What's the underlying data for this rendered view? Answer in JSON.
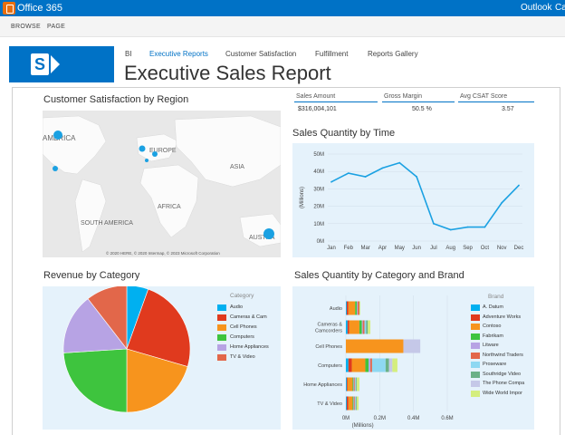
{
  "suite": {
    "title": "Office 365",
    "links": [
      "Outlook",
      "Ca"
    ]
  },
  "ribbon": {
    "tabs": [
      "BROWSE",
      "PAGE"
    ]
  },
  "nav": {
    "items": [
      "BI",
      "Executive Reports",
      "Customer Satisfaction",
      "Fulfillment",
      "Reports Gallery"
    ]
  },
  "page": {
    "title": "Executive Sales Report"
  },
  "cards": [
    {
      "label": "Sales Amount",
      "value": "$316,004,101"
    },
    {
      "label": "Gross Margin",
      "value": "50.5 %"
    },
    {
      "label": "Avg CSAT Score",
      "value": "3.57"
    }
  ],
  "map": {
    "title": "Customer Satisfaction by Region",
    "labels": [
      "AMERICA",
      "EUROPE",
      "ASIA",
      "AFRICA",
      "SOUTH AMERICA",
      "AUSTRA"
    ],
    "credit": "© 2020 HERE, © 2020 Intermap, © 2023 Microsoft Corporation"
  },
  "colors": {
    "accent": "#0072c6",
    "panel": "#e5f2fb",
    "line": "#1ba1e2"
  },
  "chart_data": [
    {
      "type": "line",
      "title": "Sales Quantity by Time",
      "ylabel": "(Millions)",
      "x": [
        "Jan",
        "Feb",
        "Mar",
        "Apr",
        "May",
        "Jun",
        "Jul",
        "Aug",
        "Sep",
        "Oct",
        "Nov",
        "Dec"
      ],
      "values": [
        34,
        39,
        37,
        42,
        45,
        37,
        10,
        6.5,
        8,
        8,
        22,
        32
      ],
      "ylim": [
        0,
        50
      ],
      "yticks": [
        "0M",
        "10M",
        "20M",
        "30M",
        "40M",
        "50M"
      ],
      "grid": true
    },
    {
      "type": "pie",
      "title": "Revenue by Category",
      "legend_title": "Category",
      "legend_position": "right",
      "categories": [
        "Audio",
        "Cameras & Camcorders",
        "Cell Phones",
        "Computers",
        "Home Appliances",
        "TV & Video"
      ],
      "legend_labels": [
        "Audio",
        "Cameras & Cam",
        "Cell Phones",
        "Computers",
        "Home Appliances",
        "TV & Video"
      ],
      "values": [
        5.5,
        24,
        20.5,
        24,
        15.5,
        10.5
      ],
      "colors": [
        "#00b0f0",
        "#e03a1e",
        "#f7941d",
        "#3ec43e",
        "#b7a3e4",
        "#e2674a"
      ]
    },
    {
      "type": "bar",
      "title": "Sales Quantity by Category and Brand",
      "xlabel": "(Millions)",
      "legend_title": "Brand",
      "legend_position": "right",
      "categories": [
        "Audio",
        "Cameras & Camcorders",
        "Cell Phones",
        "Computers",
        "Home Appliances",
        "TV & Video"
      ],
      "category_labels": [
        [
          "Audio"
        ],
        [
          "Cameras &",
          "Camcorders"
        ],
        [
          "Cell Phones"
        ],
        [
          "Computers"
        ],
        [
          "Home Appliances"
        ],
        [
          "TV & Video"
        ]
      ],
      "xticks": [
        "0M",
        "0.2M",
        "0.4M",
        "0.6M"
      ],
      "xlim": [
        0,
        0.6
      ],
      "series": [
        {
          "name": "A. Datum",
          "values": [
            0.005,
            0.01,
            0,
            0.015,
            0.005,
            0.005
          ]
        },
        {
          "name": "Adventure Works",
          "values": [
            0.01,
            0.01,
            0,
            0.02,
            0.005,
            0.01
          ]
        },
        {
          "name": "Contoso",
          "values": [
            0.04,
            0.06,
            0.34,
            0.08,
            0.03,
            0.025
          ]
        },
        {
          "name": "Fabrikam",
          "values": [
            0.01,
            0.015,
            0,
            0.02,
            0.005,
            0.005
          ]
        },
        {
          "name": "Litware",
          "values": [
            0.005,
            0.005,
            0,
            0.01,
            0.005,
            0.005
          ]
        },
        {
          "name": "Northwind Traders",
          "values": [
            0.01,
            0.01,
            0,
            0.01,
            0.005,
            0.005
          ]
        },
        {
          "name": "Proseware",
          "values": [
            0,
            0.01,
            0,
            0.08,
            0.005,
            0.005
          ]
        },
        {
          "name": "Southridge Video",
          "values": [
            0,
            0.01,
            0,
            0.02,
            0.005,
            0.005
          ]
        },
        {
          "name": "The Phone Company",
          "values": [
            0,
            0,
            0.1,
            0.02,
            0,
            0
          ]
        },
        {
          "name": "Wide World Importers",
          "values": [
            0.005,
            0.015,
            0,
            0.03,
            0.015,
            0.01
          ]
        }
      ],
      "legend_labels": [
        "A. Datum",
        "Adventure Works",
        "Contoso",
        "Fabrikam",
        "Litware",
        "Northwind Traders",
        "Proseware",
        "Southridge Video",
        "The Phone Compa",
        "Wide World Impor"
      ],
      "colors": [
        "#00b0f0",
        "#e03a1e",
        "#f7941d",
        "#3ec43e",
        "#b7a3e4",
        "#e2674a",
        "#8ed8f2",
        "#6ab187",
        "#c5c8e8",
        "#d4ee7e"
      ]
    }
  ]
}
